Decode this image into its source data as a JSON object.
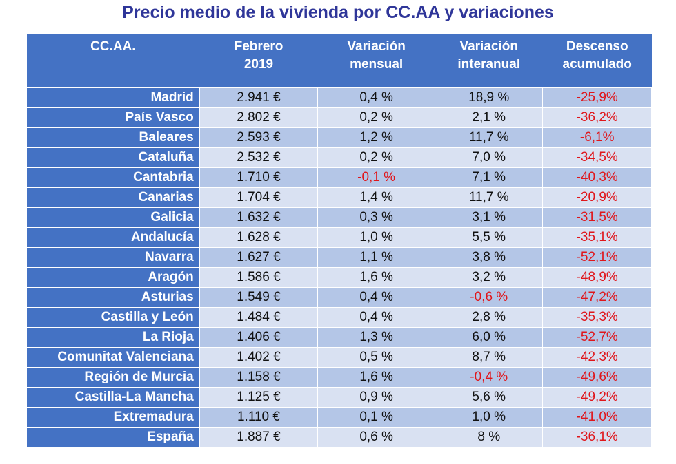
{
  "title": "Precio medio de la vivienda por CC.AA y variaciones",
  "colors": {
    "header": "#4472C4",
    "row_odd": "#B4C6E7",
    "row_even": "#D9E1F2",
    "negative": "#E0161B",
    "title": "#2F3699"
  },
  "headers": [
    [
      "CC.AA.",
      ""
    ],
    [
      "Febrero",
      "2019"
    ],
    [
      "Variación",
      "mensual"
    ],
    [
      "Variación",
      "interanual"
    ],
    [
      "Descenso",
      "acumulado"
    ]
  ],
  "rows": [
    [
      "Madrid",
      "2.941 €",
      "0,4 %",
      "18,9 %",
      "-25,9%"
    ],
    [
      "País Vasco",
      "2.802 €",
      "0,2 %",
      "2,1 %",
      "-36,2%"
    ],
    [
      "Baleares",
      "2.593 €",
      "1,2 %",
      "11,7 %",
      "-6,1%"
    ],
    [
      "Cataluña",
      "2.532 €",
      "0,2 %",
      "7,0 %",
      "-34,5%"
    ],
    [
      "Cantabria",
      "1.710 €",
      "-0,1 %",
      "7,1 %",
      "-40,3%"
    ],
    [
      "Canarias",
      "1.704 €",
      "1,4 %",
      "11,7 %",
      "-20,9%"
    ],
    [
      "Galicia",
      "1.632 €",
      "0,3 %",
      "3,1 %",
      "-31,5%"
    ],
    [
      "Andalucía",
      "1.628 €",
      "1,0 %",
      "5,5 %",
      "-35,1%"
    ],
    [
      "Navarra",
      "1.627 €",
      "1,1 %",
      "3,8 %",
      "-52,1%"
    ],
    [
      "Aragón",
      "1.586 €",
      "1,6 %",
      "3,2 %",
      "-48,9%"
    ],
    [
      "Asturias",
      "1.549 €",
      "0,4 %",
      "-0,6 %",
      "-47,2%"
    ],
    [
      "Castilla y León",
      "1.484 €",
      "0,4 %",
      "2,8 %",
      "-35,3%"
    ],
    [
      "La Rioja",
      "1.406 €",
      "1,3 %",
      "6,0 %",
      "-52,7%"
    ],
    [
      "Comunitat Valenciana",
      "1.402 €",
      "0,5 %",
      "8,7 %",
      "-42,3%"
    ],
    [
      "Región de Murcia",
      "1.158 €",
      "1,6 %",
      "-0,4 %",
      "-49,6%"
    ],
    [
      "Castilla-La Mancha",
      "1.125 €",
      "0,9 %",
      "5,6 %",
      "-49,2%"
    ],
    [
      "Extremadura",
      "1.110 €",
      "0,1 %",
      "1,0 %",
      "-41,0%"
    ],
    [
      "España",
      "1.887 €",
      "0,6 %",
      "8 %",
      "-36,1%"
    ]
  ]
}
